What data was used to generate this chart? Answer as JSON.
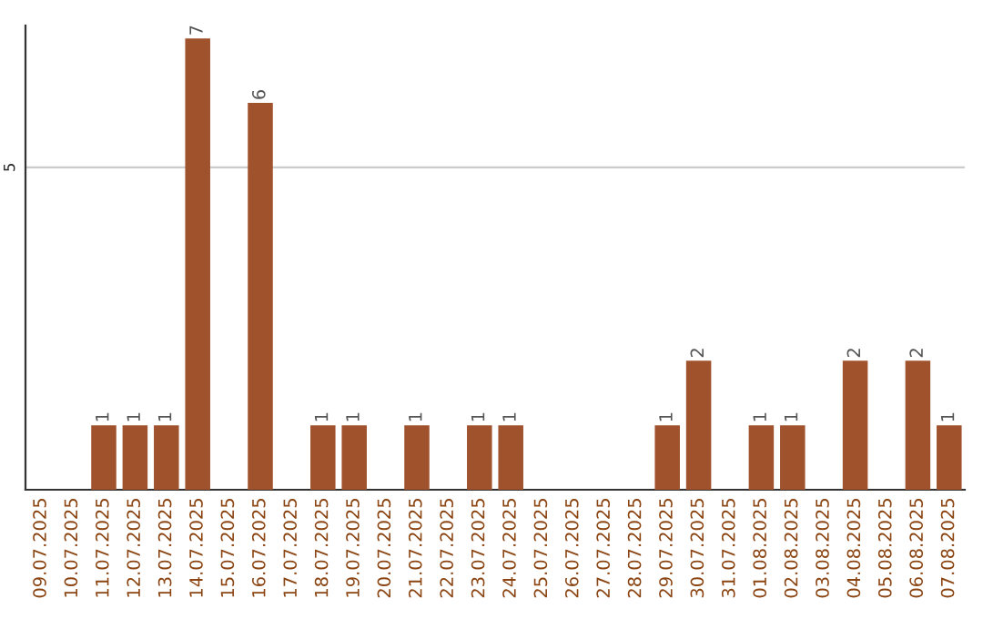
{
  "chart_data": {
    "type": "bar",
    "categories": [
      "09.07.2025",
      "10.07.2025",
      "11.07.2025",
      "12.07.2025",
      "13.07.2025",
      "14.07.2025",
      "15.07.2025",
      "16.07.2025",
      "17.07.2025",
      "18.07.2025",
      "19.07.2025",
      "20.07.2025",
      "21.07.2025",
      "22.07.2025",
      "23.07.2025",
      "24.07.2025",
      "25.07.2025",
      "26.07.2025",
      "27.07.2025",
      "28.07.2025",
      "29.07.2025",
      "30.07.2025",
      "31.07.2025",
      "01.08.2025",
      "02.08.2025",
      "03.08.2025",
      "04.08.2025",
      "05.08.2025",
      "06.08.2025",
      "07.08.2025"
    ],
    "values": [
      0,
      0,
      1,
      1,
      1,
      7,
      0,
      6,
      0,
      1,
      1,
      0,
      1,
      0,
      1,
      1,
      0,
      0,
      0,
      0,
      1,
      2,
      0,
      1,
      1,
      0,
      2,
      0,
      2,
      1
    ],
    "value_labels": [
      null,
      null,
      "1",
      "1",
      "1",
      "7",
      null,
      "6",
      null,
      "1",
      "1",
      null,
      "1",
      null,
      "1",
      "1",
      null,
      null,
      null,
      null,
      "1",
      "2",
      null,
      "1",
      "1",
      null,
      "2",
      null,
      "2",
      "1"
    ],
    "color": "#a0522d",
    "ylim": [
      0,
      7.2
    ],
    "yticks": [
      5
    ],
    "grid": "y"
  }
}
